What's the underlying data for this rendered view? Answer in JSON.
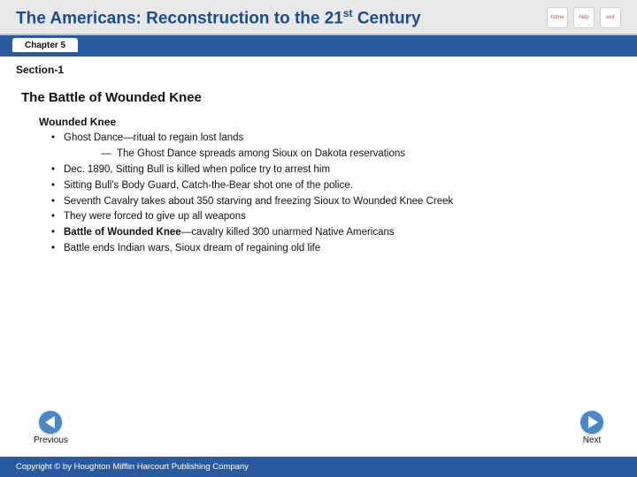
{
  "colors": {
    "title": "#1a4d8f",
    "bar": "#2a5a9e",
    "navCircle": "#4a88c7",
    "headerBg": "#e8e8e8",
    "text": "#111111",
    "iconText": "#c94a4a"
  },
  "header": {
    "title_html": "The Americans: Reconstruction to the 21<sup>st</sup> Century",
    "icons": [
      "home",
      "help",
      "exit"
    ]
  },
  "chapter": {
    "label": "Chapter 5"
  },
  "section": {
    "label": "Section-1"
  },
  "lesson": {
    "heading": "The Battle of Wounded Knee",
    "sub": "Wounded Knee",
    "bullets": [
      {
        "text": "Ghost Dance—ritual to regain lost lands",
        "sub": [
          "The Ghost Dance spreads among Sioux on Dakota reservations"
        ]
      },
      {
        "text": "Dec. 1890, Sitting Bull is killed when police try to arrest him"
      },
      {
        "text": "Sitting Bull's Body Guard, Catch-the-Bear shot one of the police."
      },
      {
        "text": "Seventh Cavalry takes about 350 starving and freezing Sioux to Wounded Knee Creek"
      },
      {
        "text": "They were forced to give up all weapons"
      },
      {
        "text_html": "<span class='bold-inline'>Battle of Wounded Knee</span>—cavalry killed 300 unarmed Native Americans"
      },
      {
        "text": "Battle ends Indian wars, Sioux dream of regaining old life"
      }
    ]
  },
  "nav": {
    "prev": "Previous",
    "next": "Next"
  },
  "footer": {
    "copyright": "Copyright © by Houghton Mifflin Harcourt Publishing Company"
  }
}
